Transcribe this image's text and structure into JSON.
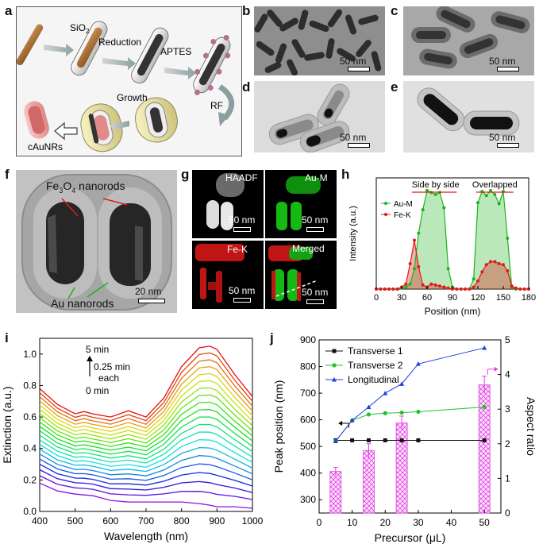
{
  "panels": {
    "a": "a",
    "b": "b",
    "c": "c",
    "d": "d",
    "e": "e",
    "f": "f",
    "g": "g",
    "h": "h",
    "i": "i",
    "j": "j"
  },
  "scheme": {
    "sio2": "SiO",
    "sio2_sub": "2",
    "reduction": "Reduction",
    "aptes": "APTES",
    "rf": "RF",
    "growth": "Growth",
    "product": "cAuNRs"
  },
  "scale_bars": {
    "b": "50 nm",
    "c": "50 nm",
    "d": "50 nm",
    "e": "50 nm",
    "f": "20 nm",
    "g_haadf": "50 nm",
    "g_au": "50 nm",
    "g_fe": "50 nm",
    "g_merged": "50 nm"
  },
  "panel_f": {
    "fe_label_1": "Fe",
    "fe_label_sub": "3",
    "fe_label_2": "O",
    "fe_label_sub2": "4",
    "fe_label_3": " nanorods",
    "au_label": "Au nanorods"
  },
  "panel_g": {
    "haadf": "HAADF",
    "au": "Au-M",
    "fe": "Fe-K",
    "merged": "Merged"
  },
  "colors": {
    "au": "#1db31d",
    "fe": "#e01b1b",
    "blue": "#1f3fdc",
    "magenta": "#e040e0",
    "black": "#111111"
  },
  "chart_data": [
    {
      "id": "h",
      "type": "area",
      "xlabel": "Position (nm)",
      "ylabel": "Intensity (a.u.)",
      "xlim": [
        0,
        180
      ],
      "xticks": [
        0,
        30,
        60,
        90,
        120,
        150,
        180
      ],
      "annotations": [
        "Side by side",
        "Overlapped"
      ],
      "legend": [
        "Au-M",
        "Fe-K"
      ],
      "series": [
        {
          "name": "Au-M",
          "x": [
            0,
            5,
            10,
            15,
            20,
            25,
            30,
            35,
            40,
            45,
            50,
            55,
            60,
            65,
            70,
            75,
            80,
            85,
            90,
            95,
            100,
            105,
            110,
            115,
            120,
            125,
            130,
            135,
            140,
            145,
            150,
            155,
            160,
            165,
            170,
            175,
            180
          ],
          "y": [
            0,
            0,
            0,
            0,
            0,
            0,
            0.01,
            0.02,
            0.05,
            0.2,
            0.55,
            0.78,
            0.97,
            0.95,
            0.93,
            0.95,
            0.8,
            0.2,
            0.02,
            0,
            0,
            0,
            0,
            0.1,
            0.85,
            0.96,
            0.92,
            0.97,
            0.93,
            0.84,
            0.96,
            0.5,
            0.02,
            0,
            0,
            0,
            0
          ]
        },
        {
          "name": "Fe-K",
          "x": [
            0,
            5,
            10,
            15,
            20,
            25,
            30,
            35,
            40,
            45,
            50,
            55,
            60,
            65,
            70,
            75,
            80,
            85,
            90,
            95,
            100,
            105,
            110,
            115,
            120,
            125,
            130,
            135,
            140,
            145,
            150,
            155,
            160,
            165,
            170,
            175,
            180
          ],
          "y": [
            0,
            0,
            0,
            0,
            0,
            0,
            0.02,
            0.05,
            0.25,
            0.48,
            0.22,
            0.04,
            0.02,
            0.05,
            0.04,
            0.03,
            0.02,
            0.01,
            0,
            0,
            0,
            0,
            0,
            0.02,
            0.08,
            0.17,
            0.24,
            0.27,
            0.27,
            0.25,
            0.24,
            0.18,
            0.03,
            0.01,
            0,
            0,
            0
          ]
        }
      ]
    },
    {
      "id": "i",
      "type": "line",
      "xlabel": "Wavelength (nm)",
      "ylabel": "Extinction (a.u.)",
      "xlim": [
        400,
        1000
      ],
      "ylim": [
        0,
        1.1
      ],
      "xticks": [
        400,
        500,
        600,
        700,
        800,
        900,
        1000
      ],
      "yticks": [
        0.0,
        0.2,
        0.4,
        0.6,
        0.8,
        1.0
      ],
      "annotations": [
        "5 min",
        "0.25 min",
        "each",
        "0 min"
      ],
      "num_curves": 21,
      "x": [
        400,
        450,
        500,
        525,
        550,
        600,
        650,
        700,
        750,
        800,
        850,
        880,
        900,
        950,
        1000
      ],
      "curve_first": [
        0.18,
        0.13,
        0.11,
        0.105,
        0.1,
        0.07,
        0.06,
        0.06,
        0.06,
        0.06,
        0.05,
        0.04,
        0.03,
        0.03,
        0.02
      ],
      "curve_last": [
        0.78,
        0.68,
        0.62,
        0.635,
        0.62,
        0.6,
        0.64,
        0.6,
        0.72,
        0.92,
        1.04,
        1.05,
        1.03,
        0.87,
        0.73
      ]
    },
    {
      "id": "j",
      "type": "line",
      "xlabel": "Precursor (μL)",
      "ylabel": "Peak position (nm)",
      "y2label": "Aspect ratio",
      "xlim": [
        0,
        55
      ],
      "ylim": [
        250,
        900
      ],
      "y2lim": [
        0,
        5
      ],
      "xticks": [
        0,
        10,
        20,
        30,
        40,
        50
      ],
      "yticks": [
        300,
        400,
        500,
        600,
        700,
        800,
        900
      ],
      "y2ticks": [
        0,
        1,
        2,
        3,
        4,
        5
      ],
      "legend": [
        "Transverse 1",
        "Transverse 2",
        "Longitudinal"
      ],
      "series": [
        {
          "name": "Transverse 1",
          "x": [
            5,
            10,
            15,
            20,
            25,
            30,
            50
          ],
          "y": [
            523,
            523,
            523,
            523,
            523,
            523,
            523
          ]
        },
        {
          "name": "Transverse 2",
          "x": [
            5,
            10,
            15,
            20,
            25,
            30,
            50
          ],
          "y": [
            520,
            598,
            620,
            625,
            627,
            630,
            648
          ]
        },
        {
          "name": "Longitudinal",
          "x": [
            5,
            10,
            15,
            20,
            25,
            30,
            50
          ],
          "y": [
            520,
            598,
            648,
            700,
            735,
            810,
            870
          ]
        }
      ],
      "bars": {
        "name": "Aspect ratio",
        "x": [
          5,
          15,
          25,
          50
        ],
        "values": [
          1.2,
          1.8,
          2.6,
          3.7
        ],
        "errors": [
          0.12,
          0.2,
          0.2,
          0.25
        ]
      }
    }
  ]
}
